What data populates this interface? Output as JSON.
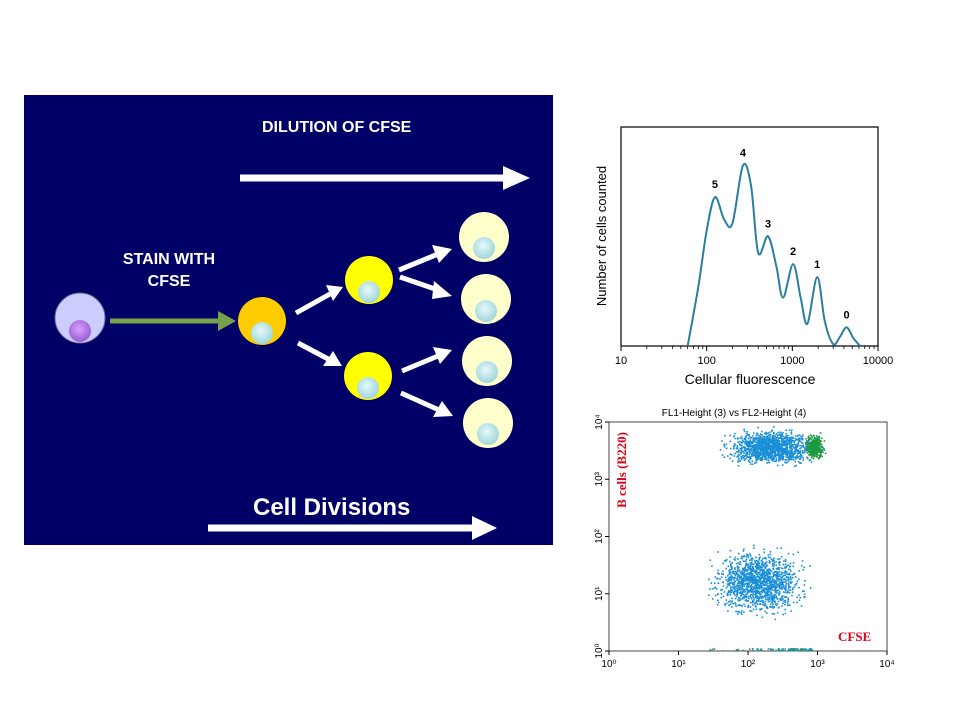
{
  "diagram": {
    "dilution_label": "DILUTION OF CFSE",
    "stain_label_line1": "STAIN WITH",
    "stain_label_line2": "CFSE",
    "divisions_label": "Cell Divisions"
  },
  "histogram": {
    "xlabel": "Cellular fluorescence",
    "ylabel": "Number of cells counted",
    "x_ticks": [
      "10",
      "100",
      "1000",
      "10000"
    ],
    "peak_labels": [
      "5",
      "4",
      "3",
      "2",
      "1",
      "0"
    ]
  },
  "flow_plot": {
    "title": "FL1-Height (3) vs FL2-Height (4)",
    "ylabel": "B cells (B220)",
    "xlabel": "CFSE",
    "x_ticks": [
      "10⁰",
      "10¹",
      "10²",
      "10³",
      "10⁴"
    ],
    "y_ticks": [
      "10⁰",
      "10¹",
      "10²",
      "10³",
      "10⁴"
    ]
  },
  "colors": {
    "panel": "#000066",
    "cell_parent": "#ccccff",
    "cell_stained": "#ffcc00",
    "cell_gen1": "#ffff00",
    "cell_gen2": "#ffffcc",
    "green_arrow": "#77a04a",
    "histogram_line": "#2a7fa0",
    "dots": "#1a8fd6",
    "dense_dots": "#1c9a3c"
  },
  "chart_data": [
    {
      "type": "line",
      "xlabel": "Cellular fluorescence",
      "ylabel": "Number of cells counted",
      "x_scale": "log",
      "xlim": [
        10,
        10000
      ],
      "x_ticks": [
        10,
        100,
        1000,
        10000
      ],
      "annotations": [
        {
          "label": "5",
          "x": 125
        },
        {
          "label": "4",
          "x": 265
        },
        {
          "label": "3",
          "x": 520
        },
        {
          "label": "2",
          "x": 1020
        },
        {
          "label": "1",
          "x": 1950
        },
        {
          "label": "0",
          "x": 4300
        }
      ],
      "series": [
        {
          "values": [
            [
              60,
              0
            ],
            [
              80,
              0.32
            ],
            [
              100,
              0.62
            ],
            [
              125,
              0.8
            ],
            [
              160,
              0.68
            ],
            [
              200,
              0.66
            ],
            [
              265,
              0.97
            ],
            [
              330,
              0.86
            ],
            [
              400,
              0.5
            ],
            [
              520,
              0.59
            ],
            [
              650,
              0.43
            ],
            [
              780,
              0.26
            ],
            [
              1020,
              0.44
            ],
            [
              1250,
              0.26
            ],
            [
              1500,
              0.12
            ],
            [
              1950,
              0.37
            ],
            [
              2400,
              0.13
            ],
            [
              3000,
              0.01
            ],
            [
              3600,
              0.05
            ],
            [
              4300,
              0.1
            ],
            [
              5200,
              0.04
            ],
            [
              6200,
              0
            ]
          ]
        }
      ]
    },
    {
      "type": "scatter",
      "title": "FL1-Height (3) vs FL2-Height (4)",
      "xlabel": "CFSE",
      "ylabel": "B cells (B220)",
      "x_scale": "log",
      "y_scale": "log",
      "xlim": [
        1,
        10000
      ],
      "ylim": [
        1,
        10000
      ],
      "clusters": [
        {
          "name": "",
          "x_range": [
            30,
            1500
          ],
          "y_range": [
            1500,
            9000
          ]
        },
        {
          "name": "",
          "x_range": [
            600,
            1300
          ],
          "y_range": [
            2000,
            7000
          ],
          "dense": true
        },
        {
          "name": "",
          "x_range": [
            20,
            1000
          ],
          "y_range": [
            3,
            90
          ]
        }
      ]
    }
  ]
}
